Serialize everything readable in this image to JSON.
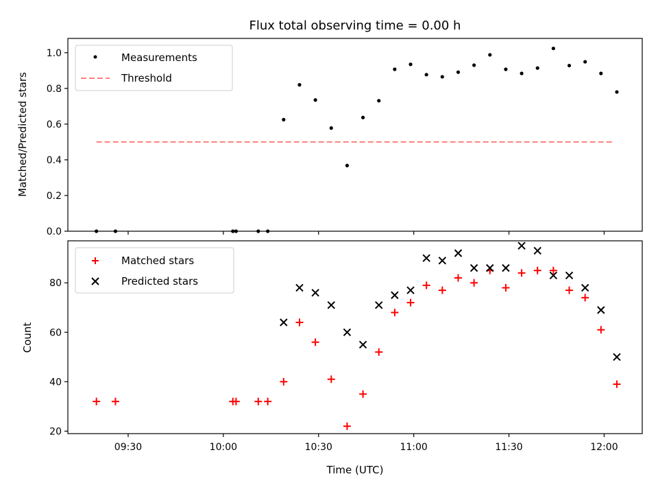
{
  "chart_data": [
    {
      "type": "scatter",
      "title": "Flux total observing time = 0.00 h",
      "xlabel": "",
      "ylabel": "Matched/Predicted stars",
      "ylim": [
        0,
        1.08
      ],
      "yticks": [
        "0.0",
        "0.2",
        "0.4",
        "0.6",
        "0.8",
        "1.0"
      ],
      "legend_position": "top-left",
      "series": [
        {
          "name": "Measurements",
          "marker": "dot",
          "color": "#000000",
          "x": [
            "09:20",
            "09:26",
            "10:03",
            "10:04",
            "10:11",
            "10:14",
            "10:19",
            "10:24",
            "10:29",
            "10:34",
            "10:39",
            "10:44",
            "10:49",
            "10:54",
            "10:59",
            "11:04",
            "11:09",
            "11:14",
            "11:19",
            "11:24",
            "11:29",
            "11:34",
            "11:39",
            "11:44",
            "11:49",
            "11:54",
            "11:59",
            "12:04"
          ],
          "values": [
            0.0,
            0.0,
            0.0,
            0.0,
            0.0,
            0.0,
            0.625,
            0.82,
            0.735,
            0.578,
            0.368,
            0.637,
            0.731,
            0.907,
            0.935,
            0.877,
            0.865,
            0.891,
            0.93,
            0.988,
            0.907,
            0.884,
            0.914,
            1.024,
            0.928,
            0.949,
            0.884,
            0.78
          ]
        },
        {
          "name": "Threshold",
          "type": "line",
          "dashed": true,
          "color": "#ff7f7f",
          "x": [
            "09:20",
            "12:03"
          ],
          "values": [
            0.5,
            0.5
          ]
        }
      ]
    },
    {
      "type": "scatter",
      "title": "",
      "xlabel": "Time (UTC)",
      "ylabel": "Count",
      "ylim": [
        19,
        97
      ],
      "yticks": [
        "20",
        "40",
        "60",
        "80"
      ],
      "xticks": [
        "09:30",
        "10:00",
        "10:30",
        "11:00",
        "11:30",
        "12:00"
      ],
      "xlim": [
        "09:11",
        "12:12"
      ],
      "legend_position": "top-left",
      "series": [
        {
          "name": "Matched stars",
          "marker": "plus",
          "color": "#ff0000",
          "x": [
            "09:20",
            "09:26",
            "10:03",
            "10:04",
            "10:11",
            "10:14",
            "10:19",
            "10:24",
            "10:29",
            "10:34",
            "10:39",
            "10:44",
            "10:49",
            "10:54",
            "10:59",
            "11:04",
            "11:09",
            "11:14",
            "11:19",
            "11:24",
            "11:29",
            "11:34",
            "11:39",
            "11:44",
            "11:49",
            "11:54",
            "11:59",
            "12:04"
          ],
          "values": [
            32,
            32,
            32,
            32,
            32,
            32,
            40,
            64,
            56,
            41,
            22,
            35,
            52,
            68,
            72,
            79,
            77,
            82,
            80,
            85,
            78,
            84,
            85,
            85,
            77,
            74,
            61,
            39
          ]
        },
        {
          "name": "Predicted stars",
          "marker": "x",
          "color": "#000000",
          "x": [
            "10:19",
            "10:24",
            "10:29",
            "10:34",
            "10:39",
            "10:44",
            "10:49",
            "10:54",
            "10:59",
            "11:04",
            "11:09",
            "11:14",
            "11:19",
            "11:24",
            "11:29",
            "11:34",
            "11:39",
            "11:44",
            "11:49",
            "11:54",
            "11:59",
            "12:04"
          ],
          "values": [
            64,
            78,
            76,
            71,
            60,
            55,
            71,
            75,
            77,
            90,
            89,
            92,
            86,
            86,
            86,
            95,
            93,
            83,
            83,
            78,
            69,
            50
          ]
        }
      ]
    }
  ]
}
